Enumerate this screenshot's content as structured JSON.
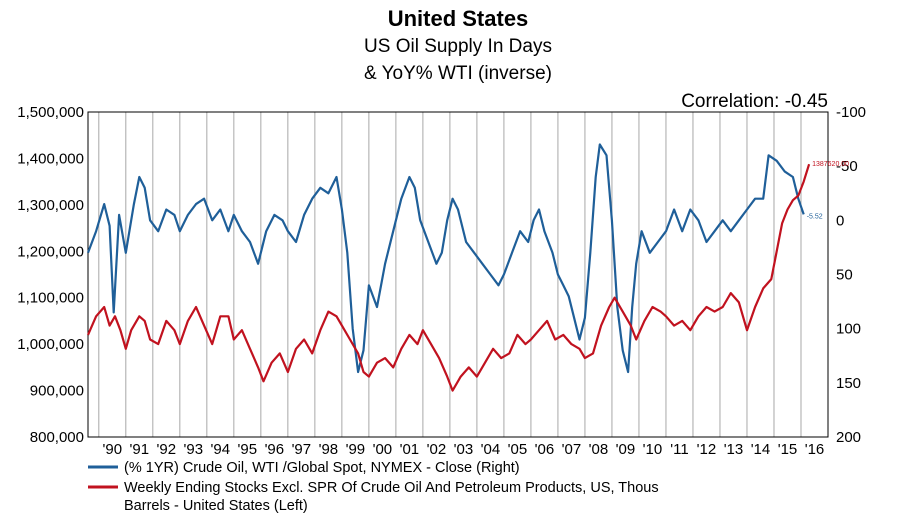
{
  "chart_data": {
    "type": "line",
    "title": "United States",
    "subtitle_line1": "US Oil Supply In Days",
    "subtitle_line2": "& YoY% WTI (inverse)",
    "annotation": "Correlation: -0.45",
    "x_tick_labels": [
      "'90",
      "'91",
      "'92",
      "'93",
      "'94",
      "'95",
      "'96",
      "'97",
      "'98",
      "'99",
      "'00",
      "'01",
      "'02",
      "'03",
      "'04",
      "'05",
      "'06",
      "'07",
      "'08",
      "'09",
      "'10",
      "'11",
      "'12",
      "'13",
      "'14",
      "'15",
      "'16"
    ],
    "x_range": [
      1989.6,
      2017.0
    ],
    "left_axis": {
      "ticks": [
        "1,500,000",
        "1,400,000",
        "1,300,000",
        "1,200,000",
        "1,100,000",
        "1,000,000",
        "900,000",
        "800,000"
      ],
      "range": [
        800000,
        1500000
      ]
    },
    "right_axis": {
      "ticks": [
        "-100",
        "-50",
        "0",
        "50",
        "100",
        "150",
        "200"
      ],
      "range": [
        -100,
        200
      ],
      "inverted": true
    },
    "series": [
      {
        "name": "(% 1YR) Crude Oil, WTI /Global Spot, NYMEX  - Close  (Right)",
        "axis": "right",
        "color": "#1f5f99",
        "end_label": "-5.52",
        "points": [
          [
            1989.6,
            30
          ],
          [
            1989.9,
            10
          ],
          [
            1990.2,
            -15
          ],
          [
            1990.4,
            5
          ],
          [
            1990.55,
            85
          ],
          [
            1990.75,
            -5
          ],
          [
            1991.0,
            30
          ],
          [
            1991.3,
            -15
          ],
          [
            1991.5,
            -40
          ],
          [
            1991.7,
            -30
          ],
          [
            1991.9,
            0
          ],
          [
            1992.2,
            10
          ],
          [
            1992.5,
            -10
          ],
          [
            1992.8,
            -5
          ],
          [
            1993.0,
            10
          ],
          [
            1993.3,
            -5
          ],
          [
            1993.6,
            -15
          ],
          [
            1993.9,
            -20
          ],
          [
            1994.2,
            0
          ],
          [
            1994.5,
            -10
          ],
          [
            1994.8,
            10
          ],
          [
            1995.0,
            -5
          ],
          [
            1995.3,
            10
          ],
          [
            1995.6,
            20
          ],
          [
            1995.9,
            40
          ],
          [
            1996.2,
            10
          ],
          [
            1996.5,
            -5
          ],
          [
            1996.8,
            0
          ],
          [
            1997.0,
            10
          ],
          [
            1997.3,
            20
          ],
          [
            1997.6,
            -5
          ],
          [
            1997.9,
            -20
          ],
          [
            1998.2,
            -30
          ],
          [
            1998.5,
            -25
          ],
          [
            1998.8,
            -40
          ],
          [
            1999.0,
            -10
          ],
          [
            1999.2,
            30
          ],
          [
            1999.4,
            100
          ],
          [
            1999.6,
            140
          ],
          [
            1999.8,
            120
          ],
          [
            2000.0,
            60
          ],
          [
            2000.3,
            80
          ],
          [
            2000.6,
            40
          ],
          [
            2000.9,
            10
          ],
          [
            2001.2,
            -20
          ],
          [
            2001.5,
            -40
          ],
          [
            2001.7,
            -30
          ],
          [
            2001.9,
            0
          ],
          [
            2002.2,
            20
          ],
          [
            2002.5,
            40
          ],
          [
            2002.7,
            30
          ],
          [
            2002.9,
            0
          ],
          [
            2003.1,
            -20
          ],
          [
            2003.3,
            -10
          ],
          [
            2003.6,
            20
          ],
          [
            2003.9,
            30
          ],
          [
            2004.2,
            40
          ],
          [
            2004.5,
            50
          ],
          [
            2004.8,
            60
          ],
          [
            2005.0,
            50
          ],
          [
            2005.3,
            30
          ],
          [
            2005.6,
            10
          ],
          [
            2005.9,
            20
          ],
          [
            2006.1,
            0
          ],
          [
            2006.3,
            -10
          ],
          [
            2006.5,
            10
          ],
          [
            2006.8,
            30
          ],
          [
            2007.0,
            50
          ],
          [
            2007.2,
            60
          ],
          [
            2007.4,
            70
          ],
          [
            2007.6,
            90
          ],
          [
            2007.8,
            110
          ],
          [
            2008.0,
            90
          ],
          [
            2008.2,
            30
          ],
          [
            2008.4,
            -40
          ],
          [
            2008.55,
            -70
          ],
          [
            2008.8,
            -60
          ],
          [
            2009.0,
            0
          ],
          [
            2009.2,
            80
          ],
          [
            2009.4,
            120
          ],
          [
            2009.6,
            140
          ],
          [
            2009.75,
            80
          ],
          [
            2009.9,
            40
          ],
          [
            2010.1,
            10
          ],
          [
            2010.4,
            30
          ],
          [
            2010.7,
            20
          ],
          [
            2011.0,
            10
          ],
          [
            2011.3,
            -10
          ],
          [
            2011.6,
            10
          ],
          [
            2011.9,
            -10
          ],
          [
            2012.2,
            0
          ],
          [
            2012.5,
            20
          ],
          [
            2012.8,
            10
          ],
          [
            2013.1,
            0
          ],
          [
            2013.4,
            10
          ],
          [
            2013.7,
            0
          ],
          [
            2014.0,
            -10
          ],
          [
            2014.3,
            -20
          ],
          [
            2014.6,
            -20
          ],
          [
            2014.8,
            -60
          ],
          [
            2015.1,
            -55
          ],
          [
            2015.4,
            -45
          ],
          [
            2015.7,
            -40
          ],
          [
            2015.9,
            -20
          ],
          [
            2016.1,
            -5.52
          ]
        ]
      },
      {
        "name": "Weekly Ending Stocks Excl. SPR Of Crude Oil And Petroleum Products, US, Thous Barrels - United States  (Left)",
        "axis": "left",
        "color": "#c1121f",
        "end_label": "1387620.00",
        "points": [
          [
            1989.6,
            1020000
          ],
          [
            1989.9,
            1060000
          ],
          [
            1990.2,
            1080000
          ],
          [
            1990.4,
            1040000
          ],
          [
            1990.6,
            1060000
          ],
          [
            1990.8,
            1030000
          ],
          [
            1991.0,
            990000
          ],
          [
            1991.2,
            1030000
          ],
          [
            1991.5,
            1060000
          ],
          [
            1991.7,
            1050000
          ],
          [
            1991.9,
            1010000
          ],
          [
            1992.2,
            1000000
          ],
          [
            1992.5,
            1050000
          ],
          [
            1992.8,
            1030000
          ],
          [
            1993.0,
            1000000
          ],
          [
            1993.3,
            1050000
          ],
          [
            1993.6,
            1080000
          ],
          [
            1993.9,
            1040000
          ],
          [
            1994.2,
            1000000
          ],
          [
            1994.5,
            1060000
          ],
          [
            1994.8,
            1060000
          ],
          [
            1995.0,
            1010000
          ],
          [
            1995.3,
            1030000
          ],
          [
            1995.6,
            990000
          ],
          [
            1995.9,
            950000
          ],
          [
            1996.1,
            920000
          ],
          [
            1996.4,
            960000
          ],
          [
            1996.7,
            980000
          ],
          [
            1997.0,
            940000
          ],
          [
            1997.3,
            990000
          ],
          [
            1997.6,
            1010000
          ],
          [
            1997.9,
            980000
          ],
          [
            1998.2,
            1030000
          ],
          [
            1998.5,
            1070000
          ],
          [
            1998.8,
            1060000
          ],
          [
            1999.0,
            1040000
          ],
          [
            1999.3,
            1010000
          ],
          [
            1999.6,
            980000
          ],
          [
            1999.8,
            940000
          ],
          [
            2000.0,
            930000
          ],
          [
            2000.3,
            960000
          ],
          [
            2000.6,
            970000
          ],
          [
            2000.9,
            950000
          ],
          [
            2001.2,
            990000
          ],
          [
            2001.5,
            1020000
          ],
          [
            2001.8,
            1000000
          ],
          [
            2002.0,
            1030000
          ],
          [
            2002.3,
            1000000
          ],
          [
            2002.6,
            970000
          ],
          [
            2002.9,
            930000
          ],
          [
            2003.1,
            900000
          ],
          [
            2003.4,
            930000
          ],
          [
            2003.7,
            950000
          ],
          [
            2004.0,
            930000
          ],
          [
            2004.3,
            960000
          ],
          [
            2004.6,
            990000
          ],
          [
            2004.9,
            970000
          ],
          [
            2005.2,
            980000
          ],
          [
            2005.5,
            1020000
          ],
          [
            2005.8,
            1000000
          ],
          [
            2006.0,
            1010000
          ],
          [
            2006.3,
            1030000
          ],
          [
            2006.6,
            1050000
          ],
          [
            2006.9,
            1010000
          ],
          [
            2007.2,
            1020000
          ],
          [
            2007.5,
            1000000
          ],
          [
            2007.8,
            990000
          ],
          [
            2008.0,
            970000
          ],
          [
            2008.3,
            980000
          ],
          [
            2008.6,
            1040000
          ],
          [
            2008.9,
            1080000
          ],
          [
            2009.1,
            1100000
          ],
          [
            2009.4,
            1070000
          ],
          [
            2009.7,
            1040000
          ],
          [
            2009.9,
            1010000
          ],
          [
            2010.2,
            1050000
          ],
          [
            2010.5,
            1080000
          ],
          [
            2010.8,
            1070000
          ],
          [
            2011.0,
            1060000
          ],
          [
            2011.3,
            1040000
          ],
          [
            2011.6,
            1050000
          ],
          [
            2011.9,
            1030000
          ],
          [
            2012.2,
            1060000
          ],
          [
            2012.5,
            1080000
          ],
          [
            2012.8,
            1070000
          ],
          [
            2013.1,
            1080000
          ],
          [
            2013.4,
            1110000
          ],
          [
            2013.7,
            1090000
          ],
          [
            2014.0,
            1030000
          ],
          [
            2014.3,
            1080000
          ],
          [
            2014.6,
            1120000
          ],
          [
            2014.9,
            1140000
          ],
          [
            2015.1,
            1200000
          ],
          [
            2015.3,
            1260000
          ],
          [
            2015.5,
            1290000
          ],
          [
            2015.7,
            1310000
          ],
          [
            2015.9,
            1320000
          ],
          [
            2016.1,
            1350000
          ],
          [
            2016.3,
            1387620
          ]
        ]
      }
    ],
    "grid": true,
    "legend_placement": "bottom"
  }
}
